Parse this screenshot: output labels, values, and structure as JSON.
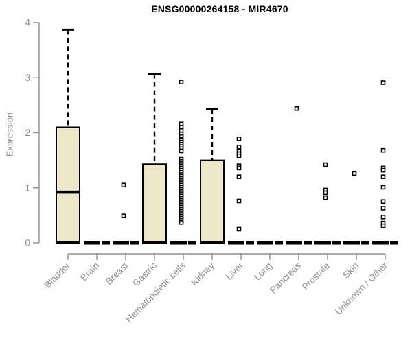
{
  "chart_data": {
    "type": "boxplot",
    "title": "ENSG00000264158 - MIR4670",
    "ylabel": "Expression",
    "xlabel": "",
    "ylim": [
      0,
      4
    ],
    "yticks": [
      "0",
      "1",
      "2",
      "3",
      "4"
    ],
    "grid": false,
    "legend": false,
    "categories": [
      "Bladder",
      "Brain",
      "Breast",
      "Gastric",
      "Hematopoietic cells",
      "Kidney",
      "Liver",
      "Lung",
      "Pancreas",
      "Prostate",
      "Skin",
      "Unknown / Other"
    ],
    "boxes": [
      {
        "category": "Bladder",
        "q1": 0,
        "median": 0.92,
        "q3": 2.1,
        "whisker_low": 0,
        "whisker_high": 3.87,
        "outliers": []
      },
      {
        "category": "Brain",
        "q1": 0,
        "median": 0,
        "q3": 0,
        "whisker_low": 0,
        "whisker_high": 0,
        "outliers": []
      },
      {
        "category": "Breast",
        "q1": 0,
        "median": 0,
        "q3": 0,
        "whisker_low": 0,
        "whisker_high": 0,
        "outliers": [
          1.05,
          0.49
        ]
      },
      {
        "category": "Gastric",
        "q1": 0,
        "median": 0,
        "q3": 1.43,
        "whisker_low": 0,
        "whisker_high": 3.07,
        "outliers": []
      },
      {
        "category": "Hematopoietic cells",
        "q1": 0,
        "median": 0,
        "q3": 0,
        "whisker_low": 0,
        "whisker_high": 0,
        "outliers": [
          2.92,
          2.16,
          2.1,
          2.04,
          1.98,
          1.93,
          1.88,
          1.86,
          1.83,
          1.79,
          1.75,
          1.71,
          1.67,
          1.52,
          1.48,
          1.44,
          1.4,
          1.36,
          1.32,
          1.28,
          1.24,
          1.21,
          1.17,
          1.13,
          1.09,
          1.05,
          1.01,
          0.97,
          0.93,
          0.89,
          0.85,
          0.81,
          0.77,
          0.73,
          0.69,
          0.65,
          0.61,
          0.57,
          0.53,
          0.49,
          0.45,
          0.41,
          0.37
        ]
      },
      {
        "category": "Kidney",
        "q1": 0,
        "median": 0,
        "q3": 1.5,
        "whisker_low": 0,
        "whisker_high": 2.43,
        "outliers": []
      },
      {
        "category": "Liver",
        "q1": 0,
        "median": 0,
        "q3": 0,
        "whisker_low": 0,
        "whisker_high": 0,
        "outliers": [
          1.89,
          1.74,
          1.66,
          1.62,
          1.58,
          1.4,
          1.36,
          1.2,
          0.76,
          0.25
        ]
      },
      {
        "category": "Lung",
        "q1": 0,
        "median": 0,
        "q3": 0,
        "whisker_low": 0,
        "whisker_high": 0,
        "outliers": []
      },
      {
        "category": "Pancreas",
        "q1": 0,
        "median": 0,
        "q3": 0,
        "whisker_low": 0,
        "whisker_high": 0,
        "outliers": [
          2.44
        ]
      },
      {
        "category": "Prostate",
        "q1": 0,
        "median": 0,
        "q3": 0,
        "whisker_low": 0,
        "whisker_high": 0,
        "outliers": [
          1.42,
          0.96,
          0.91,
          0.82
        ]
      },
      {
        "category": "Skin",
        "q1": 0,
        "median": 0,
        "q3": 0,
        "whisker_low": 0,
        "whisker_high": 0,
        "outliers": [
          1.26
        ]
      },
      {
        "category": "Unknown / Other",
        "q1": 0,
        "median": 0,
        "q3": 0,
        "whisker_low": 0,
        "whisker_high": 0,
        "outliers": [
          2.91,
          1.68,
          1.36,
          1.32,
          1.2,
          1.01,
          0.75,
          0.63,
          0.47,
          0.36,
          0.31
        ]
      }
    ],
    "colors": {
      "box_fill": "#ede6c9",
      "box_border": "#000000",
      "median": "#000000",
      "whisker": "#000000",
      "outlier_stroke": "#000000",
      "outlier_fill": "#ffffff",
      "axis": "#8d8d8d",
      "tick_label": "#8d8d8d",
      "title": "#000000",
      "background": "#ffffff"
    }
  }
}
